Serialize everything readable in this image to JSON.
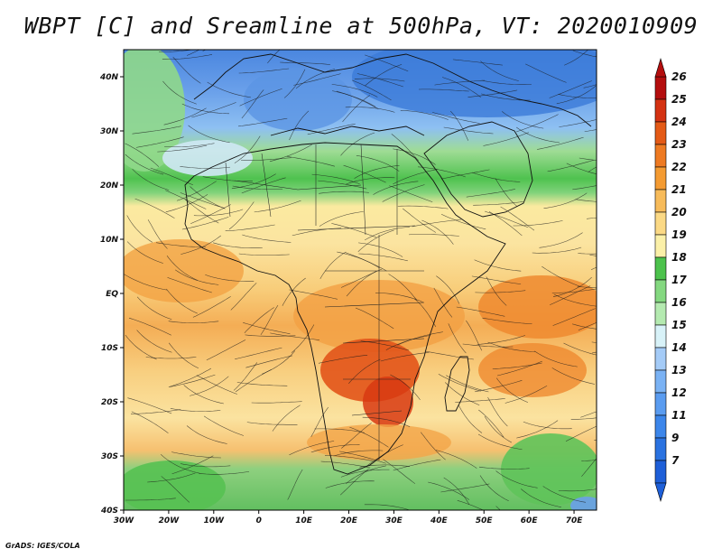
{
  "title": "WBPT [C] and Sreamline at 500hPa, VT: 2020010909",
  "credit": "GrADS: IGES/COLA",
  "map": {
    "lon_range": [
      -30,
      75
    ],
    "lat_range": [
      -40,
      45
    ],
    "lat_ticks": [
      {
        "value": 40,
        "label": "40N"
      },
      {
        "value": 30,
        "label": "30N"
      },
      {
        "value": 20,
        "label": "20N"
      },
      {
        "value": 10,
        "label": "10N"
      },
      {
        "value": 0,
        "label": "EQ"
      },
      {
        "value": -10,
        "label": "10S"
      },
      {
        "value": -20,
        "label": "20S"
      },
      {
        "value": -30,
        "label": "30S"
      },
      {
        "value": -40,
        "label": "40S"
      }
    ],
    "lon_ticks": [
      {
        "value": -30,
        "label": "30W"
      },
      {
        "value": -20,
        "label": "20W"
      },
      {
        "value": -10,
        "label": "10W"
      },
      {
        "value": 0,
        "label": "0"
      },
      {
        "value": 10,
        "label": "10E"
      },
      {
        "value": 20,
        "label": "20E"
      },
      {
        "value": 30,
        "label": "30E"
      },
      {
        "value": 40,
        "label": "40E"
      },
      {
        "value": 50,
        "label": "50E"
      },
      {
        "value": 60,
        "label": "60E"
      },
      {
        "value": 70,
        "label": "70E"
      }
    ]
  },
  "colorbar": {
    "levels": [
      "7",
      "9",
      "11",
      "12",
      "13",
      "14",
      "15",
      "16",
      "17",
      "18",
      "19",
      "20",
      "21",
      "22",
      "23",
      "24",
      "25",
      "26"
    ],
    "colors": [
      "#1e5fd8",
      "#2a72e0",
      "#3c86ea",
      "#5a9cf0",
      "#7ab2f4",
      "#a4cbf7",
      "#d8f2f8",
      "#b4eab0",
      "#84d880",
      "#4cc24c",
      "#fbf0a8",
      "#fbd985",
      "#f7bb5a",
      "#f49b32",
      "#ee7a22",
      "#e45a16",
      "#d43212",
      "#b40e0e"
    ]
  }
}
